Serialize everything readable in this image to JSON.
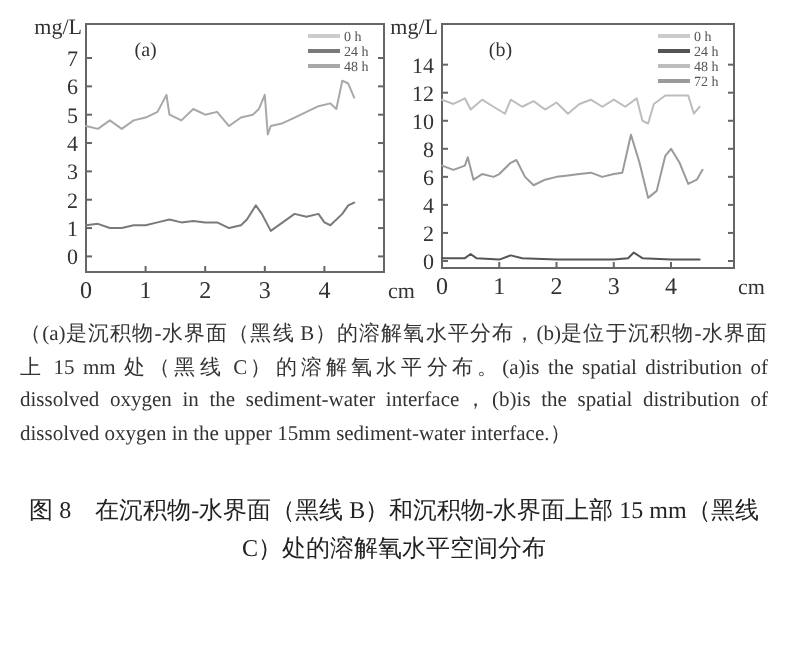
{
  "chart_data": [
    {
      "type": "line",
      "title": "(a)",
      "xlabel": "cm",
      "ylabel": "mg/L",
      "xlim": [
        0,
        5
      ],
      "ylim": [
        -0.55,
        8.2
      ],
      "xticks": [
        0,
        1,
        2,
        3,
        4
      ],
      "yticks": [
        0,
        1,
        2,
        3,
        4,
        5,
        6,
        7
      ],
      "legend": "top right",
      "series": [
        {
          "name": "0 h",
          "color": "#cccccc"
        },
        {
          "name": "24 h",
          "color": "#7a7a7a",
          "x": [
            0.0,
            0.2,
            0.4,
            0.6,
            0.8,
            1.0,
            1.2,
            1.4,
            1.6,
            1.8,
            2.0,
            2.2,
            2.4,
            2.6,
            2.7,
            2.85,
            2.95,
            3.1,
            3.3,
            3.5,
            3.7,
            3.9,
            4.0,
            4.1,
            4.3,
            4.4,
            4.5
          ],
          "values": [
            1.1,
            1.15,
            1.0,
            1.0,
            1.1,
            1.1,
            1.2,
            1.3,
            1.2,
            1.25,
            1.2,
            1.2,
            1.0,
            1.1,
            1.3,
            1.8,
            1.5,
            0.9,
            1.2,
            1.5,
            1.4,
            1.5,
            1.2,
            1.1,
            1.5,
            1.8,
            1.9
          ]
        },
        {
          "name": "48 h",
          "color": "#a8a8a8",
          "x": [
            0.0,
            0.2,
            0.4,
            0.6,
            0.8,
            1.0,
            1.2,
            1.35,
            1.4,
            1.6,
            1.8,
            2.0,
            2.2,
            2.4,
            2.6,
            2.8,
            2.9,
            3.0,
            3.05,
            3.1,
            3.3,
            3.5,
            3.7,
            3.9,
            4.1,
            4.2,
            4.3,
            4.4,
            4.5
          ],
          "values": [
            4.6,
            4.5,
            4.8,
            4.5,
            4.8,
            4.9,
            5.1,
            5.7,
            5.0,
            4.8,
            5.2,
            5.0,
            5.1,
            4.6,
            4.9,
            5.0,
            5.2,
            5.7,
            4.3,
            4.6,
            4.7,
            4.9,
            5.1,
            5.3,
            5.4,
            5.2,
            6.2,
            6.1,
            5.6
          ]
        }
      ]
    },
    {
      "type": "line",
      "title": "(b)",
      "xlabel": "cm",
      "ylabel": "mg/L",
      "xlim": [
        0,
        5.1
      ],
      "ylim": [
        -0.5,
        16.9
      ],
      "xticks": [
        0,
        1,
        2,
        3,
        4
      ],
      "yticks": [
        0,
        2,
        4,
        6,
        8,
        10,
        12,
        14
      ],
      "legend": "top right",
      "series": [
        {
          "name": "0 h",
          "color": "#cccccc"
        },
        {
          "name": "24 h",
          "color": "#555555",
          "x": [
            0.0,
            0.4,
            0.5,
            0.6,
            1.0,
            1.2,
            1.4,
            2.0,
            2.6,
            3.0,
            3.25,
            3.35,
            3.5,
            4.0,
            4.5
          ],
          "values": [
            0.2,
            0.2,
            0.5,
            0.2,
            0.1,
            0.4,
            0.2,
            0.1,
            0.1,
            0.1,
            0.2,
            0.6,
            0.2,
            0.1,
            0.1
          ]
        },
        {
          "name": "48 h",
          "color": "#bdbdbd",
          "x": [
            0.0,
            0.2,
            0.4,
            0.5,
            0.7,
            0.9,
            1.1,
            1.2,
            1.4,
            1.6,
            1.8,
            2.0,
            2.2,
            2.4,
            2.6,
            2.8,
            3.0,
            3.2,
            3.4,
            3.5,
            3.6,
            3.7,
            3.9,
            4.1,
            4.3,
            4.4,
            4.5
          ],
          "values": [
            11.5,
            11.2,
            11.6,
            10.8,
            11.5,
            11.0,
            10.5,
            11.5,
            11.0,
            11.4,
            10.8,
            11.3,
            10.5,
            11.2,
            11.5,
            11.0,
            11.5,
            11.0,
            11.6,
            10.0,
            9.8,
            11.2,
            11.8,
            11.8,
            11.8,
            10.5,
            11.0
          ]
        },
        {
          "name": "72 h",
          "color": "#9a9a9a",
          "x": [
            0.0,
            0.2,
            0.4,
            0.45,
            0.55,
            0.7,
            0.9,
            1.0,
            1.2,
            1.3,
            1.45,
            1.6,
            1.8,
            2.0,
            2.2,
            2.4,
            2.6,
            2.8,
            3.0,
            3.15,
            3.3,
            3.45,
            3.6,
            3.75,
            3.9,
            4.0,
            4.15,
            4.3,
            4.45,
            4.55
          ],
          "values": [
            6.8,
            6.5,
            6.8,
            7.4,
            5.8,
            6.2,
            6.0,
            6.2,
            7.0,
            7.2,
            6.0,
            5.4,
            5.8,
            6.0,
            6.1,
            6.2,
            6.3,
            6.0,
            6.2,
            6.3,
            9.0,
            7.0,
            4.5,
            5.0,
            7.5,
            8.0,
            7.0,
            5.5,
            5.8,
            6.5
          ]
        }
      ],
      "annotations": [
        "（(a)是沉积物-水界面（黑线 B）的溶解氧水平分布，(b)是位于沉积物-水界面上 15 mm 处（黑线 C）的溶解氧水平分布。(a)is the spatial distribution of dissolved oxygen in the sediment-water interface，(b)is the spatial distribution of dissolved oxygen in the upper 15mm sediment-water interface.）",
        "图 8　在沉积物-水界面（黑线 B）和沉积物-水界面上部 15 mm（黑线 C）处的溶解氧水平空间分布"
      ]
    }
  ]
}
